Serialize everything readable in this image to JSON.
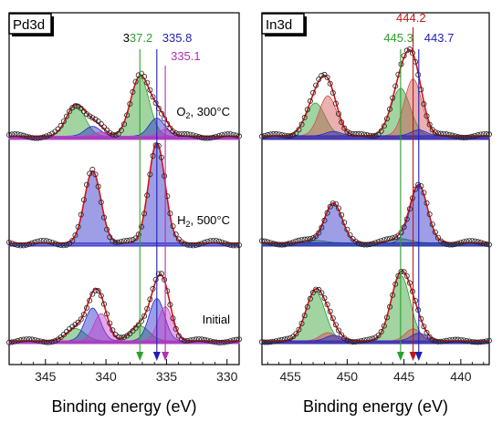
{
  "chart_data": [
    {
      "type": "line",
      "panel_label": "Pd3d",
      "xlabel": "Binding energy (eV)",
      "xlim": [
        348,
        329
      ],
      "x_reversed": true,
      "x_ticks": [
        345,
        340,
        335,
        330
      ],
      "reference_lines": [
        {
          "value": 337.2,
          "label_prefix": "3",
          "label_rest": "37.2",
          "color": "#2ea02e",
          "prefix_color": "#000000"
        },
        {
          "value": 335.8,
          "label": "335.8",
          "color": "#1f1fb4"
        },
        {
          "value": 335.1,
          "label": "335.1",
          "color": "#b42db4"
        }
      ],
      "spectra": [
        {
          "condition_main": "O",
          "condition_sub": "2",
          "condition_rest": ", 300°C",
          "background": 0.04,
          "components": [
            {
              "center": 342.5,
              "fwhm": 1.8,
              "height": 0.38,
              "color": "#2ea02e"
            },
            {
              "center": 337.2,
              "fwhm": 1.8,
              "height": 0.72,
              "color": "#2ea02e"
            },
            {
              "center": 341.1,
              "fwhm": 1.5,
              "height": 0.12,
              "color": "#2828c8"
            },
            {
              "center": 335.8,
              "fwhm": 1.5,
              "height": 0.22,
              "color": "#2828c8"
            },
            {
              "center": 340.4,
              "fwhm": 1.3,
              "height": 0.05,
              "color": "#c83cc8"
            },
            {
              "center": 335.1,
              "fwhm": 1.3,
              "height": 0.08,
              "color": "#c83cc8"
            }
          ]
        },
        {
          "condition_main": "H",
          "condition_sub": "2",
          "condition_rest": ", 500°C",
          "background": 0.03,
          "components": [
            {
              "center": 341.1,
              "fwhm": 1.6,
              "height": 0.72,
              "color": "#2828c8"
            },
            {
              "center": 335.8,
              "fwhm": 1.6,
              "height": 1.0,
              "color": "#2828c8"
            }
          ]
        },
        {
          "condition_main": "Initial",
          "condition_sub": "",
          "condition_rest": "",
          "background": 0.04,
          "components": [
            {
              "center": 342.5,
              "fwhm": 1.8,
              "height": 0.18,
              "color": "#2ea02e"
            },
            {
              "center": 337.2,
              "fwhm": 1.8,
              "height": 0.22,
              "color": "#2ea02e"
            },
            {
              "center": 341.1,
              "fwhm": 1.5,
              "height": 0.48,
              "color": "#2828c8"
            },
            {
              "center": 335.8,
              "fwhm": 1.5,
              "height": 0.62,
              "color": "#2828c8"
            },
            {
              "center": 340.4,
              "fwhm": 1.4,
              "height": 0.4,
              "color": "#c83cc8"
            },
            {
              "center": 335.1,
              "fwhm": 1.4,
              "height": 0.5,
              "color": "#c83cc8"
            }
          ]
        }
      ]
    },
    {
      "type": "line",
      "panel_label": "In3d",
      "xlabel": "Binding energy (eV)",
      "xlim": [
        457.5,
        437.5
      ],
      "x_reversed": true,
      "x_ticks": [
        455,
        450,
        445,
        440
      ],
      "reference_lines": [
        {
          "value": 445.3,
          "label": "445.3",
          "color": "#2ea02e"
        },
        {
          "value": 444.2,
          "label": "444.2",
          "color": "#c01414"
        },
        {
          "value": 443.7,
          "label": "443.7",
          "color": "#1f1fb4"
        }
      ],
      "spectra": [
        {
          "background": 0.05,
          "components": [
            {
              "center": 452.8,
              "fwhm": 2.0,
              "height": 0.45,
              "color": "#2ea02e"
            },
            {
              "center": 445.3,
              "fwhm": 2.0,
              "height": 0.65,
              "color": "#2ea02e"
            },
            {
              "center": 451.7,
              "fwhm": 1.8,
              "height": 0.55,
              "color": "#d25050"
            },
            {
              "center": 444.2,
              "fwhm": 1.8,
              "height": 0.78,
              "color": "#d25050"
            },
            {
              "center": 451.2,
              "fwhm": 1.6,
              "height": 0.06,
              "color": "#2828c8"
            },
            {
              "center": 443.7,
              "fwhm": 1.6,
              "height": 0.08,
              "color": "#2828c8"
            }
          ]
        },
        {
          "background": 0.04,
          "components": [
            {
              "center": 452.8,
              "fwhm": 2.0,
              "height": 0.03,
              "color": "#2ea02e"
            },
            {
              "center": 445.3,
              "fwhm": 2.0,
              "height": 0.05,
              "color": "#2ea02e"
            },
            {
              "center": 451.2,
              "fwhm": 1.8,
              "height": 0.48,
              "color": "#2828c8"
            },
            {
              "center": 443.7,
              "fwhm": 1.8,
              "height": 0.7,
              "color": "#2828c8"
            }
          ]
        },
        {
          "background": 0.05,
          "components": [
            {
              "center": 452.8,
              "fwhm": 2.0,
              "height": 0.9,
              "color": "#2ea02e"
            },
            {
              "center": 445.3,
              "fwhm": 2.0,
              "height": 1.2,
              "color": "#2ea02e"
            },
            {
              "center": 451.7,
              "fwhm": 1.6,
              "height": 0.15,
              "color": "#d25050"
            },
            {
              "center": 444.2,
              "fwhm": 1.6,
              "height": 0.22,
              "color": "#d25050"
            },
            {
              "center": 451.2,
              "fwhm": 1.6,
              "height": 0.1,
              "color": "#2828c8"
            },
            {
              "center": 443.7,
              "fwhm": 1.6,
              "height": 0.14,
              "color": "#2828c8"
            }
          ]
        }
      ]
    }
  ]
}
